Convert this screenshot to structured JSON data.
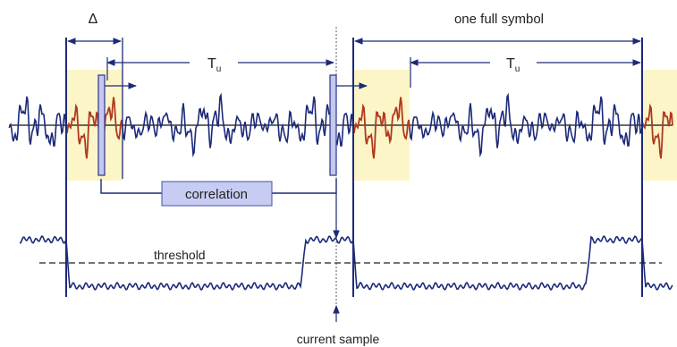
{
  "labels": {
    "delta": "Δ",
    "one_full_symbol": "one full symbol",
    "useful_period_1": "T",
    "useful_period_1_sub": "u",
    "useful_period_2": "T",
    "useful_period_2_sub": "u",
    "correlation": "correlation",
    "threshold": "threshold",
    "current_sample": "current sample"
  },
  "colors": {
    "signal": "#1c2a78",
    "guard_signal": "#b0391f",
    "guard_fill": "#fbf5c8",
    "window_fill": "#c4c8ee",
    "window_stroke": "#2a3290",
    "boundary": "#1c2a78",
    "correlation_box_fill": "#c7ccf2",
    "correlation_box_stroke": "#4450a8",
    "axis": "#111111"
  },
  "icons": {
    "arrow_head": "arrowhead"
  }
}
